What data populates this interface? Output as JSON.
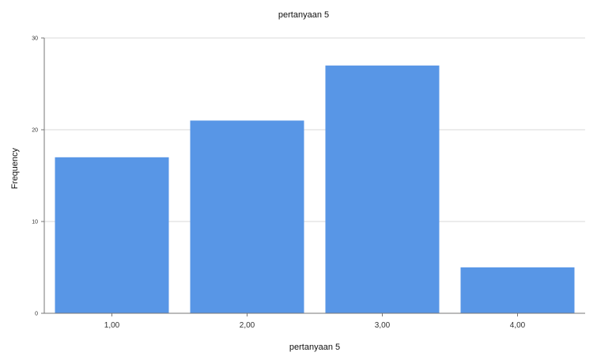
{
  "chart_data": {
    "type": "bar",
    "title": "pertanyaan 5",
    "xlabel": "pertanyaan 5",
    "ylabel": "Frequency",
    "categories": [
      "1,00",
      "2,00",
      "3,00",
      "4,00"
    ],
    "series": [
      {
        "values": [
          17,
          21,
          27,
          5
        ]
      }
    ],
    "ylim": [
      0,
      30
    ],
    "yticks": [
      "0",
      "10",
      "20",
      "30"
    ],
    "grid": true,
    "legend": "none",
    "colors": {
      "bar": "#5896E6",
      "grid": "#d9d9d9",
      "axis": "#777777"
    }
  }
}
